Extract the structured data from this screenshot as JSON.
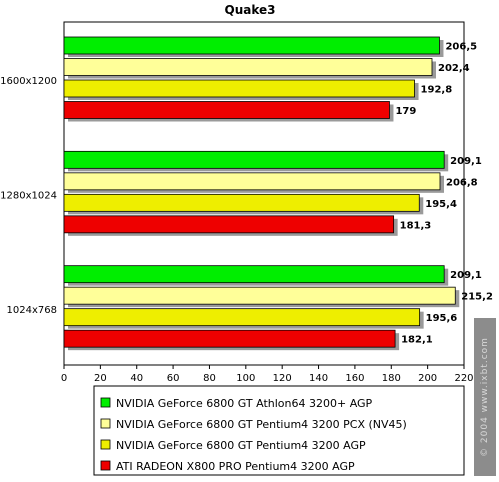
{
  "chart_data": {
    "type": "bar",
    "orientation": "horizontal",
    "title": "Quake3",
    "categories": [
      "1600x1200",
      "1280x1024",
      "1024x768"
    ],
    "series": [
      {
        "name": "NVIDIA GeForce 6800 GT Athlon64 3200+ AGP",
        "values": [
          206.5,
          209.1,
          209.1
        ],
        "labels": [
          "206,5",
          "209,1",
          "209,1"
        ]
      },
      {
        "name": "NVIDIA GeForce 6800 GT Pentium4 3200 PCX (NV45)",
        "values": [
          202.4,
          206.8,
          215.2
        ],
        "labels": [
          "202,4",
          "206,8",
          "215,2"
        ]
      },
      {
        "name": "NVIDIA GeForce 6800 GT Pentium4 3200 AGP",
        "values": [
          192.8,
          195.4,
          195.6
        ],
        "labels": [
          "192,8",
          "195,4",
          "195,6"
        ]
      },
      {
        "name": "ATI RADEON X800 PRO Pentium4 3200 AGP",
        "values": [
          179,
          181.3,
          182.1
        ],
        "labels": [
          "179",
          "181,3",
          "182,1"
        ]
      }
    ],
    "xlim": [
      0,
      220
    ],
    "xticks": [
      "0",
      "20",
      "40",
      "60",
      "80",
      "100",
      "120",
      "140",
      "160",
      "180",
      "200",
      "220"
    ],
    "grid": false,
    "legend_position": "bottom",
    "colors": [
      "#00ee00",
      "#ffff99",
      "#eeee00",
      "#ee0000"
    ]
  },
  "watermark": "© 2004 www.ixbt.com"
}
